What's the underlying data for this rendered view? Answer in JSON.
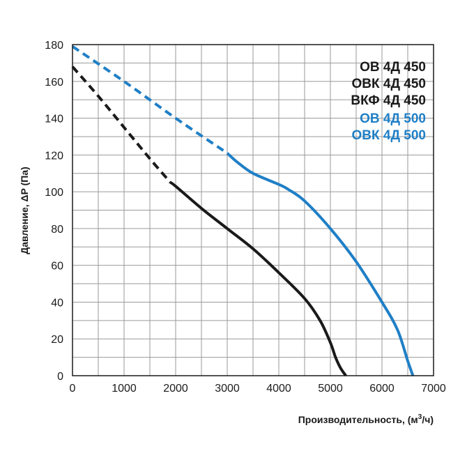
{
  "chart_data": {
    "type": "line",
    "title": "",
    "xlabel": "Производительность, (м3/ч)",
    "xlabel_main": "Производительность, (м",
    "xlabel_sup": "3",
    "xlabel_tail": "/ч)",
    "ylabel": "Давление, ΔP (Па)",
    "xlim": [
      0,
      7000
    ],
    "ylim": [
      0,
      180
    ],
    "x_ticks": [
      0,
      1000,
      2000,
      3000,
      4000,
      5000,
      6000,
      7000
    ],
    "y_ticks": [
      0,
      20,
      40,
      60,
      80,
      100,
      120,
      140,
      160,
      180
    ],
    "x_minor_step": 500,
    "y_minor_step": 10,
    "grid": true,
    "legend_position": "top-right",
    "colors": {
      "black": "#1a1a1a",
      "blue": "#1f7fc6",
      "grid": "#9a9a9a"
    },
    "series": [
      {
        "name": "ОВ 4Д 450 / ОВК 4Д 450 / ВКФ 4Д 450",
        "color": "#1a1a1a",
        "dashed_x": [
          0,
          500,
          1000,
          1500,
          1900
        ],
        "dashed_y": [
          168,
          152,
          135,
          118,
          105
        ],
        "solid_x": [
          1900,
          2000,
          2500,
          3000,
          3500,
          4000,
          4500,
          4800,
          5000,
          5100,
          5200,
          5300
        ],
        "solid_y": [
          105,
          103,
          91,
          80,
          69,
          56,
          42,
          30,
          18,
          10,
          4,
          0
        ]
      },
      {
        "name": "ОВ 4Д 500 / ОВК 4Д 500",
        "color": "#1f7fc6",
        "dashed_x": [
          0,
          1000,
          2000,
          3000
        ],
        "dashed_y": [
          179,
          160,
          140,
          121
        ],
        "solid_x": [
          3000,
          3200,
          3500,
          4000,
          4200,
          4500,
          5000,
          5500,
          6000,
          6300,
          6500,
          6600
        ],
        "solid_y": [
          121,
          116,
          110,
          104,
          101,
          95,
          80,
          62,
          40,
          25,
          8,
          0
        ]
      }
    ]
  },
  "legend": [
    {
      "label": "ОВ 4Д 450",
      "color": "#1a1a1a"
    },
    {
      "label": "ОВК 4Д 450",
      "color": "#1a1a1a"
    },
    {
      "label": "ВКФ 4Д 450",
      "color": "#1a1a1a"
    },
    {
      "label": "ОВ 4Д 500",
      "color": "#1f7fc6"
    },
    {
      "label": "ОВК 4Д 500",
      "color": "#1f7fc6"
    }
  ]
}
